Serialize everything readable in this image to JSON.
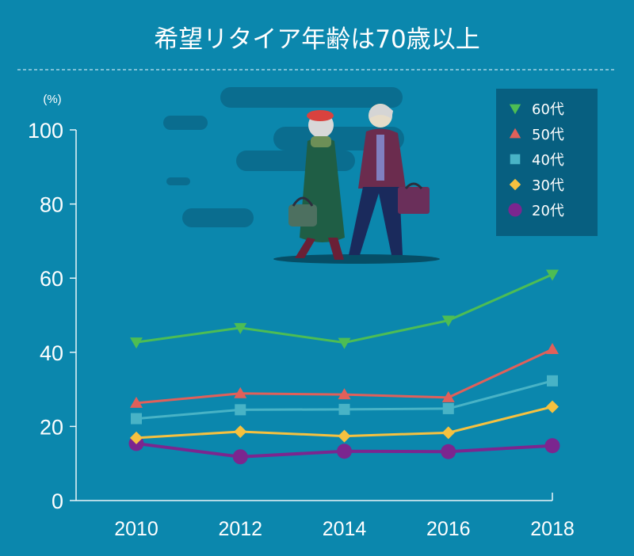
{
  "chart_data": {
    "type": "line",
    "title": "希望リタイア年齢は70歳以上",
    "unit": "(%)",
    "x": [
      "2010",
      "2012",
      "2014",
      "2016",
      "2018"
    ],
    "ylim": [
      0,
      100
    ],
    "yticks": [
      "0",
      "20",
      "40",
      "60",
      "80",
      "100"
    ],
    "grid": false,
    "legend_position": "top-right",
    "series": [
      {
        "name": "60代",
        "values": [
          42.7,
          46.6,
          42.6,
          48.6,
          61.0
        ],
        "color": "#4dbd54",
        "marker": "triangle-down"
      },
      {
        "name": "50代",
        "values": [
          26.3,
          28.9,
          28.6,
          27.8,
          40.8
        ],
        "color": "#e0605a",
        "marker": "triangle-up"
      },
      {
        "name": "40代",
        "values": [
          22.1,
          24.5,
          24.6,
          24.8,
          32.3
        ],
        "color": "#48b3c6",
        "marker": "square"
      },
      {
        "name": "30代",
        "values": [
          16.9,
          18.6,
          17.4,
          18.3,
          25.3
        ],
        "color": "#f6c13f",
        "marker": "diamond"
      },
      {
        "name": "20代",
        "values": [
          15.4,
          11.8,
          13.3,
          13.2,
          14.8
        ],
        "color": "#7b268f",
        "marker": "circle"
      }
    ]
  }
}
